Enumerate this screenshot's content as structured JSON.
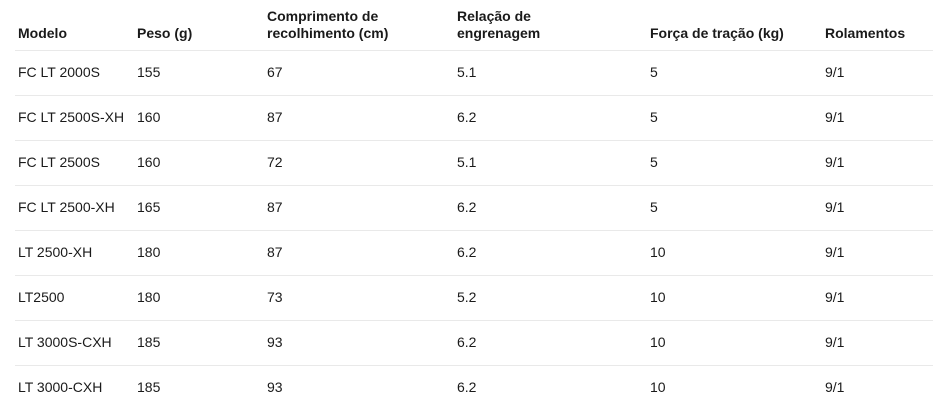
{
  "table": {
    "columns": [
      "Modelo",
      "Peso (g)",
      "Comprimento de recolhimento (cm)",
      "Relação de engrenagem",
      "Força de tração (kg)",
      "Rolamentos"
    ],
    "rows": [
      [
        "FC LT 2000S",
        "155",
        "67",
        "5.1",
        "5",
        "9/1"
      ],
      [
        "FC LT 2500S-XH",
        "160",
        "87",
        "6.2",
        "5",
        "9/1"
      ],
      [
        "FC LT 2500S",
        "160",
        "72",
        "5.1",
        "5",
        "9/1"
      ],
      [
        "FC LT 2500-XH",
        "165",
        "87",
        "6.2",
        "5",
        "9/1"
      ],
      [
        "LT 2500-XH",
        "180",
        "87",
        "6.2",
        "10",
        "9/1"
      ],
      [
        "LT2500",
        "180",
        "73",
        "5.2",
        "10",
        "9/1"
      ],
      [
        "LT 3000S-CXH",
        "185",
        "93",
        "6.2",
        "10",
        "9/1"
      ],
      [
        "LT 3000-CXH",
        "185",
        "93",
        "6.2",
        "10",
        "9/1"
      ]
    ],
    "colors": {
      "text": "#1a1a1a",
      "divider": "#e9e9e9",
      "background": "#ffffff"
    }
  }
}
